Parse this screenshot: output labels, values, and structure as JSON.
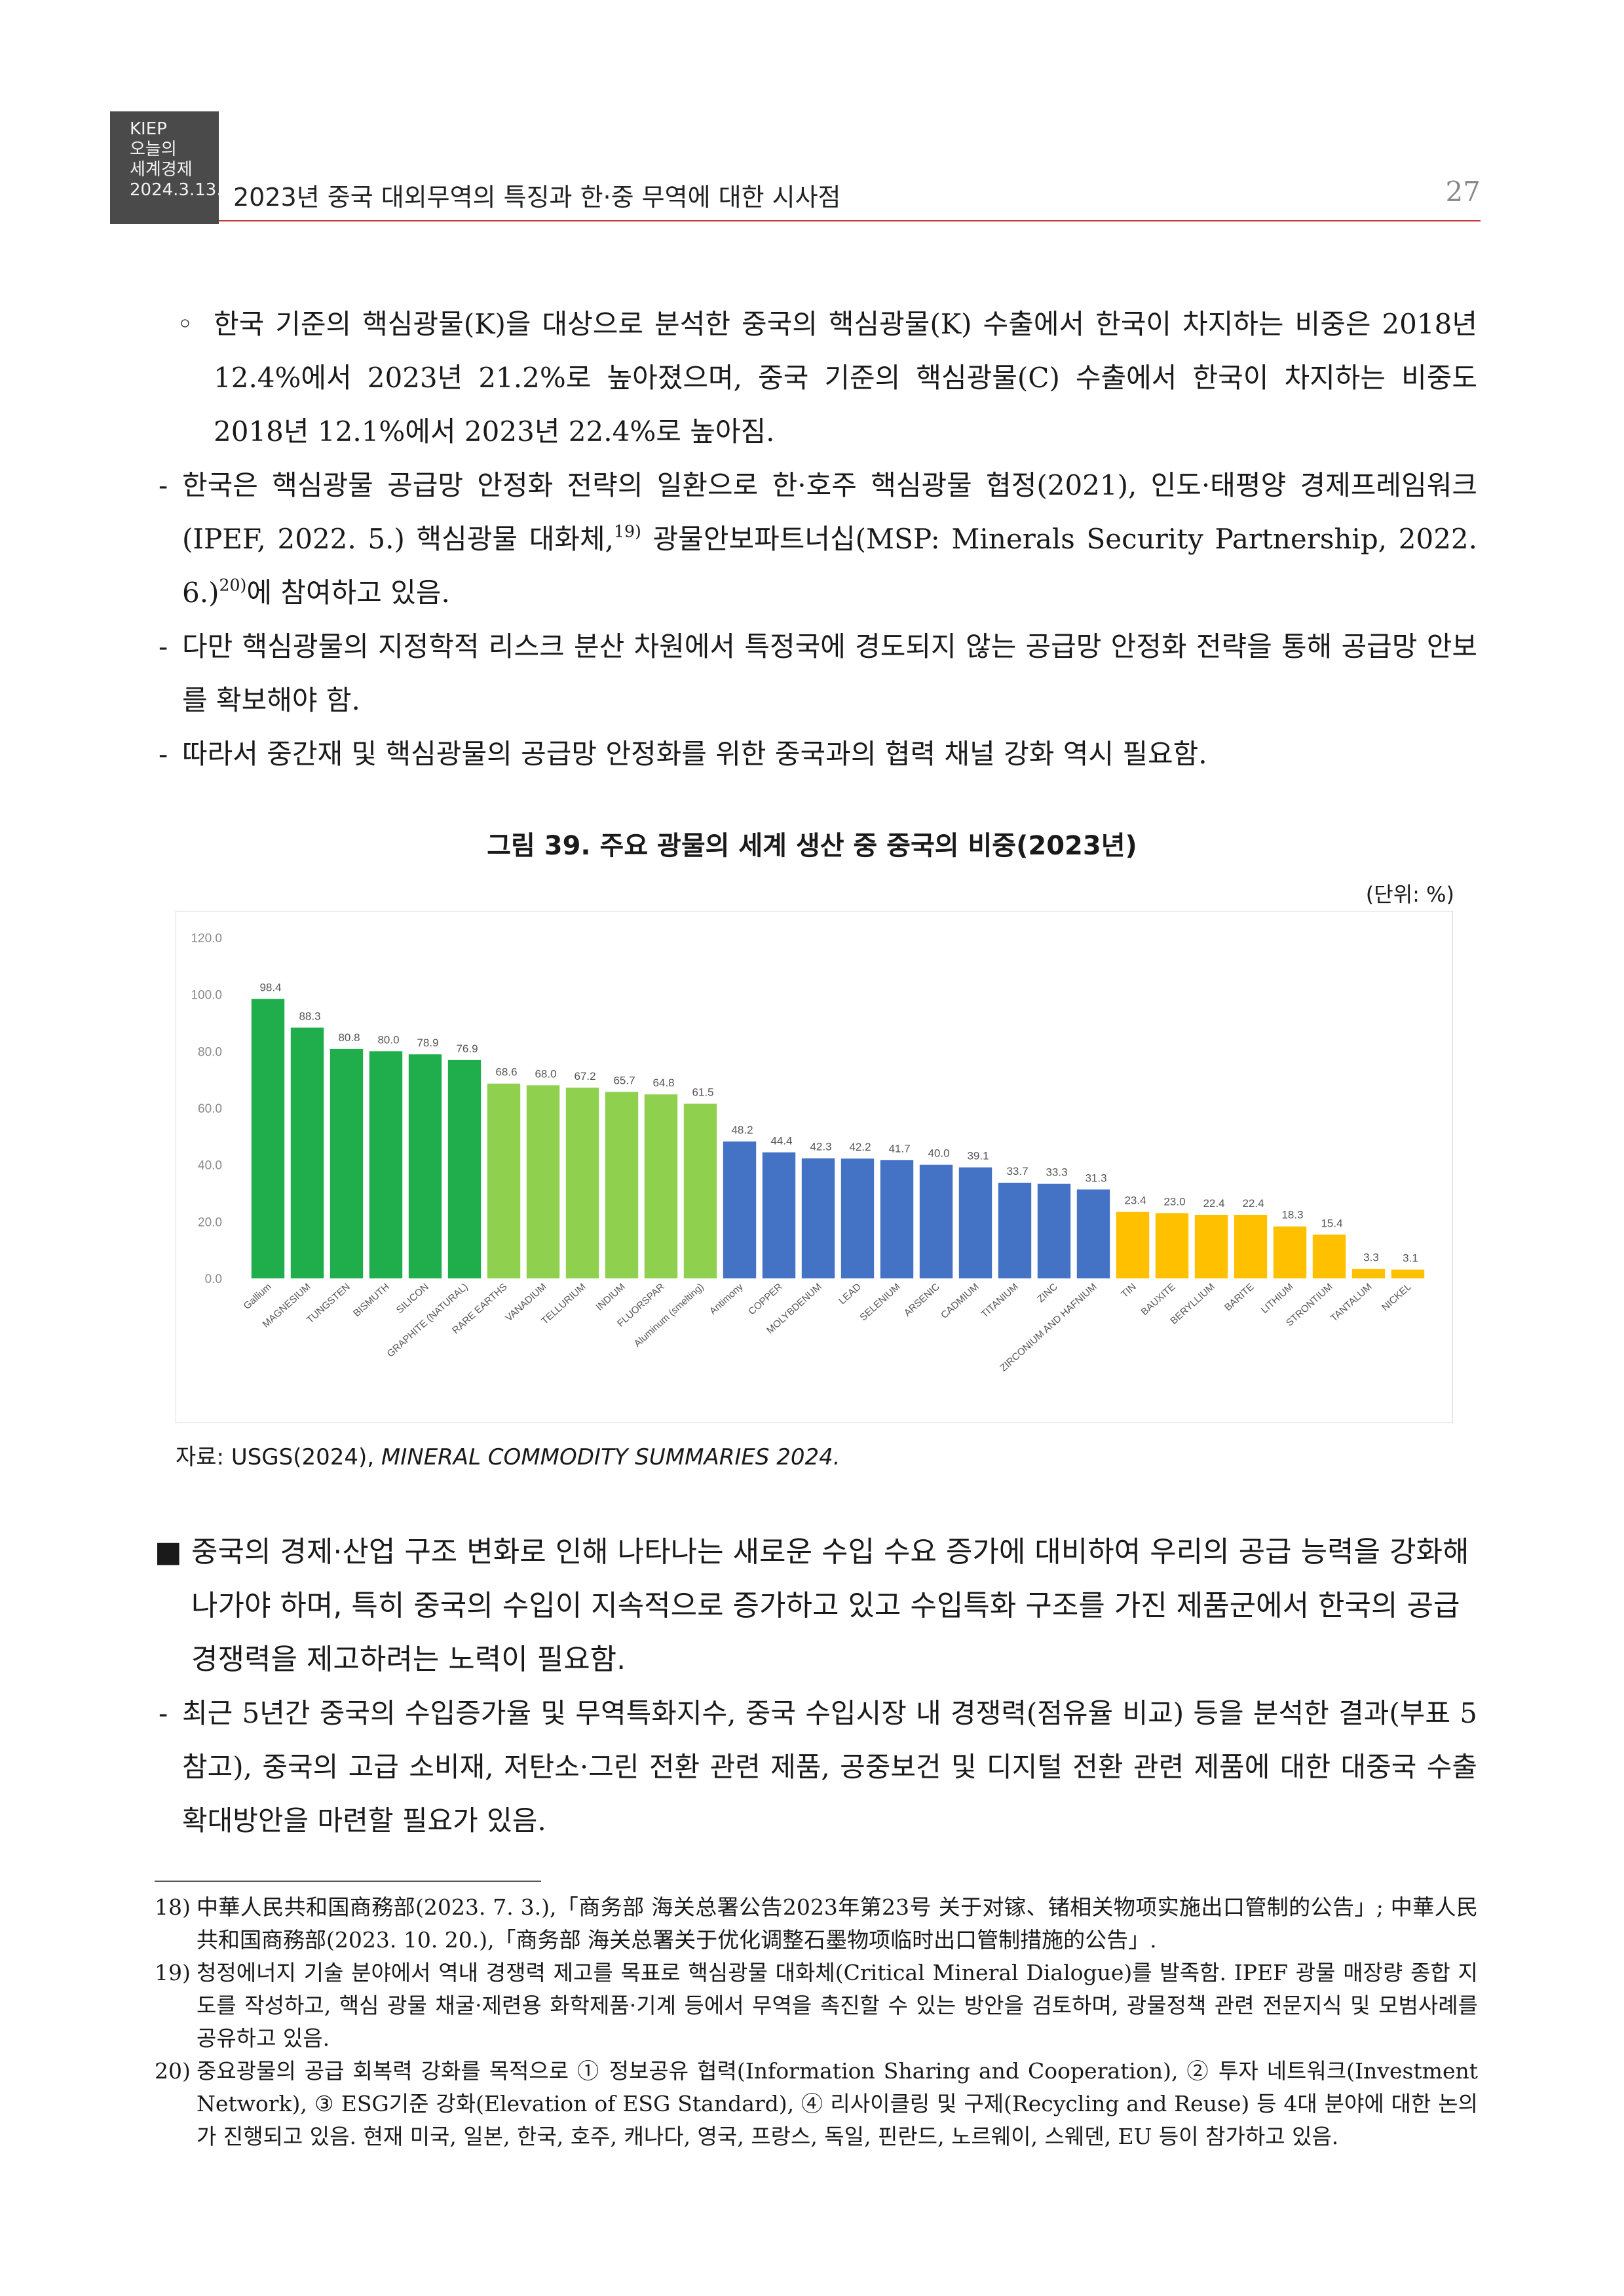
{
  "header": {
    "box_lines": [
      "KIEP",
      "오늘의",
      "세계경제",
      "2024.3.13."
    ],
    "title": "2023년 중국 대외무역의 특징과 한·중 무역에 대한 시사점",
    "page_number": "27"
  },
  "body": {
    "p1_marker": "◦",
    "p1_text": "한국 기준의 핵심광물(K)을 대상으로 분석한 중국의 핵심광물(K) 수출에서 한국이 차지하는 비중은 2018년 12.4%에서 2023년 21.2%로 높아졌으며, 중국 기준의 핵심광물(C) 수출에서 한국이 차지하는 비중도 2018년 12.1%에서 2023년 22.4%로 높아짐.",
    "p2_marker": "-",
    "p2_text_a": "한국은 핵심광물 공급망 안정화 전략의 일환으로 한·호주 핵심광물 협정(2021), 인도·태평양 경제프레임워크(IPEF, 2022. 5.) 핵심광물 대화체,",
    "p2_sup1": "19)",
    "p2_text_b": " 광물안보파트너십(MSP: Minerals Security Partnership, 2022. 6.)",
    "p2_sup2": "20)",
    "p2_text_c": "에 참여하고 있음.",
    "p3_marker": "-",
    "p3_text": "다만 핵심광물의 지정학적 리스크 분산 차원에서 특정국에 경도되지 않는 공급망 안정화 전략을 통해 공급망 안보를 확보해야 함.",
    "p4_marker": "-",
    "p4_text": "따라서 중간재 및 핵심광물의 공급망 안정화를 위한 중국과의 협력 채널 강화 역시 필요함.",
    "p5_marker": "■",
    "p5_text": "중국의 경제·산업 구조 변화로 인해 나타나는 새로운 수입 수요 증가에 대비하여 우리의 공급 능력을 강화해 나가야 하며, 특히 중국의 수입이 지속적으로 증가하고 있고 수입특화 구조를 가진 제품군에서 한국의 공급 경쟁력을 제고하려는 노력이 필요함.",
    "p6_marker": "-",
    "p6_text": "최근 5년간 중국의 수입증가율 및 무역특화지수, 중국 수입시장 내 경쟁력(점유율 비교) 등을 분석한 결과(부표 5 참고), 중국의 고급 소비재, 저탄소·그린 전환 관련 제품, 공중보건 및 디지털 전환 관련 제품에 대한 대중국 수출 확대방안을 마련할 필요가 있음."
  },
  "figure": {
    "title": "그림 39. 주요 광물의 세계 생산 중 중국의 비중(2023년)",
    "unit": "(단위: %)",
    "source_prefix": "자료: USGS(2024), ",
    "source_italic": "MINERAL COMMODITY SUMMARIES 2024."
  },
  "chart_data": {
    "type": "bar",
    "title": "",
    "xlabel": "",
    "ylabel": "",
    "ylim": [
      0,
      120
    ],
    "yticks": [
      "0.0",
      "20.0",
      "40.0",
      "60.0",
      "80.0",
      "100.0",
      "120.0"
    ],
    "grid": false,
    "legend": "none",
    "categories": [
      "Gallium",
      "MAGNESIUM",
      "TUNGSTEN",
      "BISMUTH",
      "SILICON",
      "GRAPHITE (NATURAL)",
      "RARE EARTHS",
      "VANADIUM",
      "TELLURIUM",
      "INDIUM",
      "FLUORSPAR",
      "Aluminum (smelting)",
      "Antimony",
      "COPPER",
      "MOLYBDENUM",
      "LEAD",
      "SELENIUM",
      "ARSENIC",
      "CADMIUM",
      "TITANIUM",
      "ZINC",
      "ZIRCONIUM AND HAFNIUM",
      "TIN",
      "BAUXITE",
      "BERYLLIUM",
      "BARITE",
      "LITHIUM",
      "STRONTIUM",
      "TANTALUM",
      "NICKEL"
    ],
    "values": [
      98.4,
      88.3,
      80.8,
      80.0,
      78.9,
      76.9,
      68.6,
      68.0,
      67.2,
      65.7,
      64.8,
      61.5,
      48.2,
      44.4,
      42.3,
      42.2,
      41.7,
      40.0,
      39.1,
      33.7,
      33.3,
      31.3,
      23.4,
      23.0,
      22.4,
      22.4,
      18.3,
      15.4,
      3.3,
      3.1
    ],
    "value_labels": [
      "98.4",
      "88.3",
      "80.8",
      "80.0",
      "78.9",
      "76.9",
      "68.6",
      "68.0",
      "67.2",
      "65.7",
      "64.8",
      "61.5",
      "48.2",
      "44.4",
      "42.3",
      "42.2",
      "41.7",
      "40.0",
      "39.1",
      "33.7",
      "33.3",
      "31.3",
      "23.4",
      "23.0",
      "22.4",
      "22.4",
      "18.3",
      "15.4",
      "3.3",
      "3.1"
    ],
    "group_colors": [
      "#1fae4b",
      "#1fae4b",
      "#1fae4b",
      "#1fae4b",
      "#1fae4b",
      "#1fae4b",
      "#8fd14f",
      "#8fd14f",
      "#8fd14f",
      "#8fd14f",
      "#8fd14f",
      "#8fd14f",
      "#4472c4",
      "#4472c4",
      "#4472c4",
      "#4472c4",
      "#4472c4",
      "#4472c4",
      "#4472c4",
      "#4472c4",
      "#4472c4",
      "#4472c4",
      "#ffc000",
      "#ffc000",
      "#ffc000",
      "#ffc000",
      "#ffc000",
      "#ffc000",
      "#ffc000",
      "#ffc000"
    ]
  },
  "footnotes": [
    {
      "num": "18)",
      "text": "中華人民共和国商務部(2023. 7. 3.),「商务部 海关总署公告2023年第23号 关于对镓、锗相关物项实施出口管制的公告」; 中華人民共和国商務部(2023. 10. 20.),「商务部 海关总署关于优化调整石墨物项临时出口管制措施的公告」."
    },
    {
      "num": "19)",
      "text": "청정에너지 기술 분야에서 역내 경쟁력 제고를 목표로 핵심광물 대화체(Critical Mineral Dialogue)를 발족함. IPEF 광물 매장량 종합 지도를 작성하고, 핵심 광물 채굴·제련용 화학제품·기계 등에서 무역을 촉진할 수 있는 방안을 검토하며, 광물정책 관련 전문지식 및 모범사례를 공유하고 있음."
    },
    {
      "num": "20)",
      "text": "중요광물의 공급 회복력 강화를 목적으로 ① 정보공유 협력(Information Sharing and Cooperation), ② 투자 네트워크(Investment Network), ③ ESG기준 강화(Elevation of ESG Standard), ④ 리사이클링 및 구제(Recycling and Reuse) 등 4대 분야에 대한 논의가 진행되고 있음. 현재 미국, 일본, 한국, 호주, 캐나다, 영국, 프랑스, 독일, 핀란드, 노르웨이, 스웨덴, EU 등이 참가하고 있음."
    }
  ]
}
